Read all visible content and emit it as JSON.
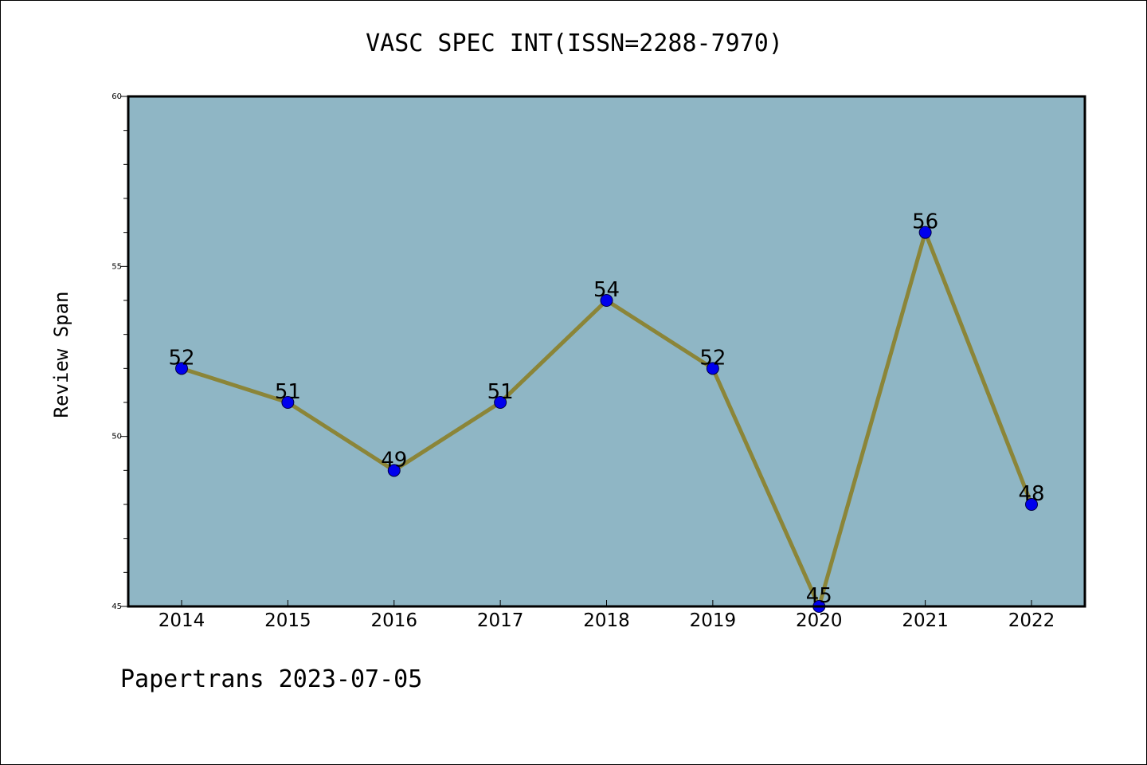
{
  "title": "VASC SPEC INT(ISSN=2288-7970)",
  "footer": "Papertrans 2023-07-05",
  "colors": {
    "plot_background": "#8fb6c5",
    "line": "#8b8538",
    "marker": "#0000ee",
    "axes": "#000000"
  },
  "chart_data": {
    "type": "line",
    "title": "VASC SPEC INT(ISSN=2288-7970)",
    "xlabel": "",
    "ylabel": "Review Span",
    "categories": [
      "2014",
      "2015",
      "2016",
      "2017",
      "2018",
      "2019",
      "2020",
      "2021",
      "2022"
    ],
    "series": [
      {
        "values": [
          52,
          51,
          49,
          51,
          54,
          52,
          45,
          56,
          48
        ]
      }
    ],
    "ylim": [
      45,
      60
    ],
    "yticks": [
      45,
      50,
      55,
      60
    ],
    "yminor_step": 1,
    "data_labels": true,
    "grid": false
  }
}
